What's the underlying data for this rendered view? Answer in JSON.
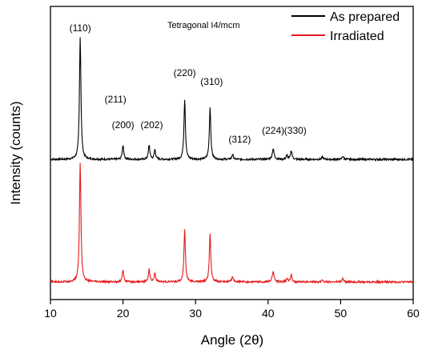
{
  "chart_data": {
    "type": "line",
    "title": "",
    "annotation": "Tetragonal I4/mcm",
    "xlabel": "Angle (2θ)",
    "ylabel": "Intensity (counts)",
    "xlim": [
      10,
      60
    ],
    "xticks": [
      10,
      20,
      30,
      40,
      50,
      60
    ],
    "y_ticks_labeled": false,
    "legend_position": "top-right",
    "series": [
      {
        "name": "As prepared",
        "color": "#000000",
        "baseline": 0,
        "peaks": [
          {
            "x": 14.1,
            "height": 153,
            "width": 0.12
          },
          {
            "x": 20.0,
            "height": 18,
            "width": 0.12
          },
          {
            "x": 23.6,
            "height": 18,
            "width": 0.12
          },
          {
            "x": 24.4,
            "height": 12,
            "width": 0.12
          },
          {
            "x": 28.5,
            "height": 75,
            "width": 0.12
          },
          {
            "x": 32.0,
            "height": 65,
            "width": 0.12
          },
          {
            "x": 35.1,
            "height": 6,
            "width": 0.12
          },
          {
            "x": 40.7,
            "height": 13,
            "width": 0.15
          },
          {
            "x": 42.6,
            "height": 5,
            "width": 0.12
          },
          {
            "x": 43.2,
            "height": 11,
            "width": 0.12
          },
          {
            "x": 47.5,
            "height": 3,
            "width": 0.12
          },
          {
            "x": 50.3,
            "height": 4,
            "width": 0.12
          }
        ]
      },
      {
        "name": "Irradiated",
        "color": "#e8191b",
        "baseline": -153,
        "peaks": [
          {
            "x": 14.1,
            "height": 149,
            "width": 0.12
          },
          {
            "x": 20.0,
            "height": 14,
            "width": 0.12
          },
          {
            "x": 23.6,
            "height": 16,
            "width": 0.12
          },
          {
            "x": 24.4,
            "height": 11,
            "width": 0.12
          },
          {
            "x": 28.5,
            "height": 65,
            "width": 0.12
          },
          {
            "x": 32.0,
            "height": 60,
            "width": 0.12
          },
          {
            "x": 35.1,
            "height": 7,
            "width": 0.12
          },
          {
            "x": 40.7,
            "height": 13,
            "width": 0.15
          },
          {
            "x": 42.6,
            "height": 4,
            "width": 0.12
          },
          {
            "x": 43.2,
            "height": 9,
            "width": 0.12
          },
          {
            "x": 47.5,
            "height": 3,
            "width": 0.12
          },
          {
            "x": 50.3,
            "height": 4,
            "width": 0.12
          }
        ]
      }
    ],
    "peak_labels": [
      {
        "text": "(110)",
        "x": 14.1
      },
      {
        "text": "(200)",
        "x": 20.0
      },
      {
        "text": "(211)",
        "x": 23.6
      },
      {
        "text": "(202)",
        "x": 24.4
      },
      {
        "text": "(220)",
        "x": 28.5
      },
      {
        "text": "(310)",
        "x": 32.0
      },
      {
        "text": "(312)",
        "x": 35.1
      },
      {
        "text": "(224)",
        "x": 40.7
      },
      {
        "text": "(330)",
        "x": 43.2
      }
    ]
  }
}
